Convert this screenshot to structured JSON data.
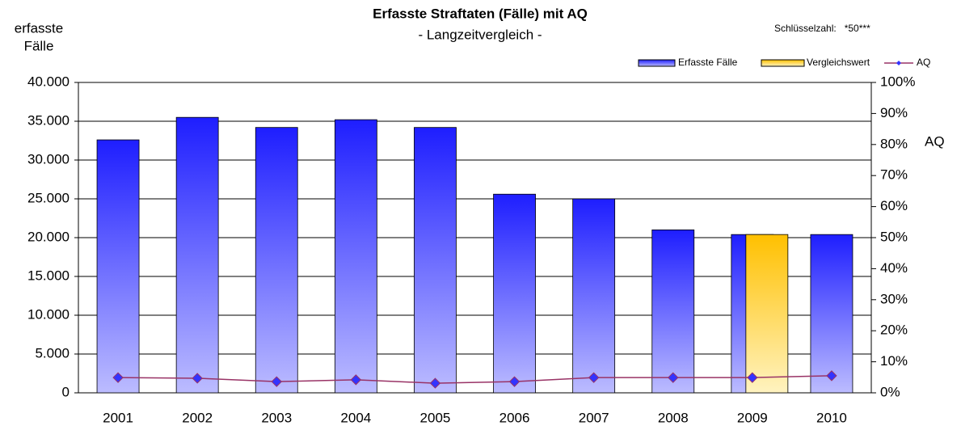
{
  "chart_data": {
    "type": "bar",
    "title": "Erfasste Straftaten (Fälle) mit AQ",
    "subtitle": "- Langzeitvergleich -",
    "ylabel": [
      "erfasste",
      "Fälle"
    ],
    "y2label": "AQ",
    "annotation": "Schlüsselzahl:   *50***",
    "categories": [
      "2001",
      "2002",
      "2003",
      "2004",
      "2005",
      "2006",
      "2007",
      "2008",
      "2009",
      "2010"
    ],
    "series": [
      {
        "name": "Erfasste Fälle",
        "color": "#1e1eff",
        "values": [
          32600,
          35500,
          34200,
          35200,
          34200,
          25600,
          25000,
          21000,
          20400,
          20400
        ]
      },
      {
        "name": "Vergleichswert",
        "color": "#ffc000",
        "values": [
          null,
          null,
          null,
          null,
          null,
          null,
          null,
          null,
          20400,
          null
        ]
      },
      {
        "name": "AQ",
        "color": "#993366",
        "marker_color": "#3333ff",
        "axis": "y2",
        "values": [
          4.9,
          4.7,
          3.6,
          4.2,
          3.1,
          3.6,
          4.9,
          4.9,
          4.9,
          5.5
        ]
      }
    ],
    "ylim": [
      0,
      40000
    ],
    "yticks": [
      0,
      {
        "value": 5000,
        "label": "5.000"
      },
      {
        "value": 10000,
        "label": "10.000"
      },
      {
        "value": 15000,
        "label": "15.000"
      },
      {
        "value": 20000,
        "label": "20.000"
      },
      {
        "value": 25000,
        "label": "25.000"
      },
      {
        "value": 30000,
        "label": "30.000"
      },
      {
        "value": 35000,
        "label": "35.000"
      },
      {
        "value": 40000,
        "label": "40.000"
      }
    ],
    "y2lim": [
      0,
      100
    ],
    "y2ticks": [
      {
        "value": 0,
        "label": "0%"
      },
      {
        "value": 10,
        "label": "10%"
      },
      {
        "value": 20,
        "label": "20%"
      },
      {
        "value": 30,
        "label": "30%"
      },
      {
        "value": 40,
        "label": "40%"
      },
      {
        "value": 50,
        "label": "50%"
      },
      {
        "value": 60,
        "label": "60%"
      },
      {
        "value": 70,
        "label": "70%"
      },
      {
        "value": 80,
        "label": "80%"
      },
      {
        "value": 90,
        "label": "90%"
      },
      {
        "value": 100,
        "label": "100%"
      }
    ],
    "grid": true,
    "legend": "top-right"
  }
}
